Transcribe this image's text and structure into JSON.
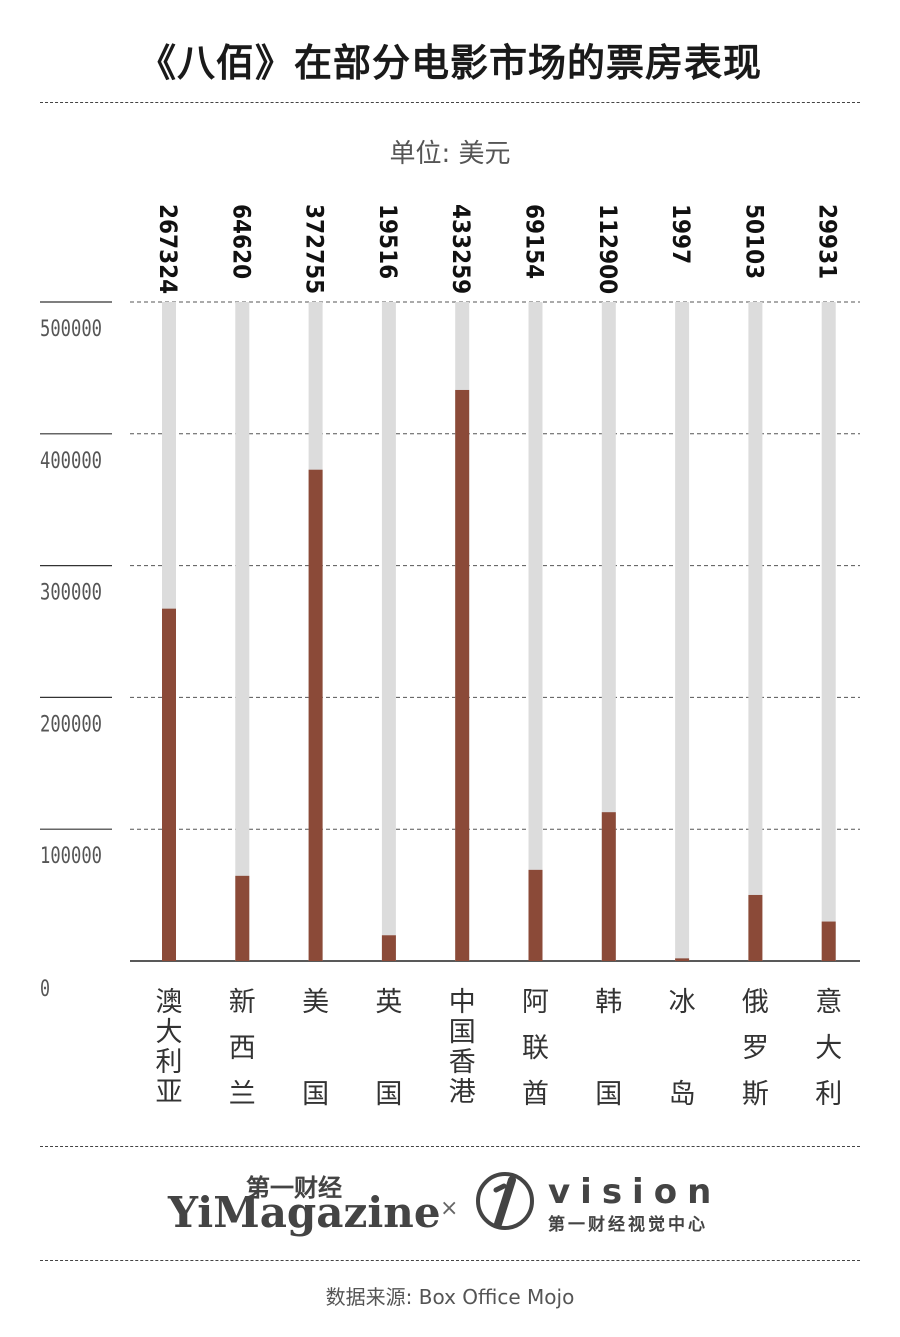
{
  "title": "《八佰》在部分电影市场的票房表现",
  "unit_label": "单位: 美元",
  "source": "数据来源: Box Office Mojo",
  "logos": {
    "yimagazine_cn": "第一财经",
    "yimagazine_en": "YiMagazine",
    "separator": "×",
    "vision_en": "vision",
    "vision_cn": "第一财经视觉中心"
  },
  "colors": {
    "bar": "#8b4a38",
    "track": "#dcdcdc",
    "text": "#1a1a1a"
  },
  "chart_data": {
    "type": "bar",
    "title": "《八佰》在部分电影市场的票房表现",
    "unit": "单位: 美元",
    "categories": [
      "澳大利亚",
      "新西兰",
      "美国",
      "英国",
      "中国香港",
      "阿联酋",
      "韩国",
      "冰岛",
      "俄罗斯",
      "意大利"
    ],
    "category_lines": [
      [
        "澳",
        "大",
        "利",
        "亚"
      ],
      [
        "新",
        "西",
        "兰"
      ],
      [
        "美",
        "国"
      ],
      [
        "英",
        "国"
      ],
      [
        "中",
        "国",
        "香",
        "港"
      ],
      [
        "阿",
        "联",
        "酋"
      ],
      [
        "韩",
        "国"
      ],
      [
        "冰",
        "岛"
      ],
      [
        "俄",
        "罗",
        "斯"
      ],
      [
        "意",
        "大",
        "利"
      ]
    ],
    "values": [
      267324,
      64620,
      372755,
      19516,
      433259,
      69154,
      112900,
      1997,
      50103,
      29931
    ],
    "yticks": [
      0,
      100000,
      200000,
      300000,
      400000,
      500000
    ],
    "ylim": [
      0,
      500000
    ],
    "grid": true
  }
}
